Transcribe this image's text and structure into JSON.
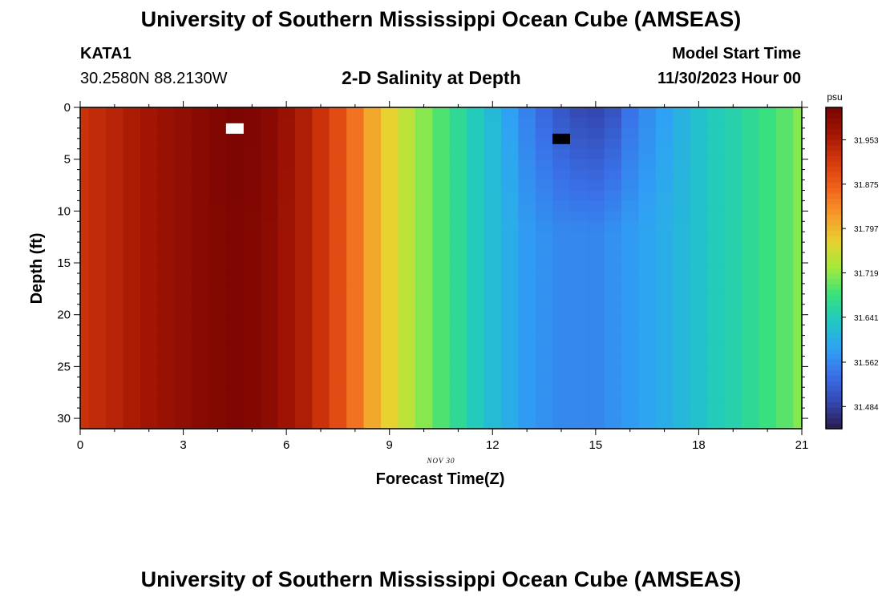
{
  "header": {
    "title": "University of Southern Mississippi Ocean Cube (AMSEAS)",
    "station": "KATA1",
    "coordinates": "30.2580N  88.2130W",
    "subtitle": "2-D Salinity at Depth",
    "model_start_label": "Model Start Time",
    "model_start_value": "11/30/2023 Hour 00"
  },
  "footer": {
    "title": "University of Southern Mississippi Ocean Cube (AMSEAS)"
  },
  "chart_data": {
    "type": "heatmap",
    "title": "2-D Salinity at Depth",
    "xlabel": "Forecast Time(Z)",
    "ylabel": "Depth (ft)",
    "date_label": "NOV 30",
    "x_ticks": [
      0,
      3,
      6,
      9,
      12,
      15,
      18,
      21
    ],
    "y_ticks": [
      0,
      5,
      10,
      15,
      20,
      25,
      30
    ],
    "xlim": [
      0,
      21
    ],
    "ylim": [
      31,
      0
    ],
    "time_hours": [
      0,
      0.5,
      1,
      1.5,
      2,
      2.5,
      3,
      3.5,
      4,
      4.5,
      5,
      5.5,
      6,
      6.5,
      7,
      7.5,
      8,
      8.5,
      9,
      9.5,
      10,
      10.5,
      11,
      11.5,
      12,
      12.5,
      13,
      13.5,
      14,
      14.5,
      15,
      15.5,
      16,
      16.5,
      17,
      17.5,
      18,
      18.5,
      19,
      19.5,
      20,
      20.5,
      21
    ],
    "surface_salinity_psu": [
      31.925,
      31.935,
      31.944,
      31.955,
      31.965,
      31.976,
      31.985,
      31.994,
      32.003,
      32.008,
      32.005,
      31.995,
      31.975,
      31.953,
      31.925,
      31.895,
      31.855,
      31.81,
      31.775,
      31.745,
      31.715,
      31.69,
      31.665,
      31.64,
      31.615,
      31.585,
      31.555,
      31.53,
      31.51,
      31.495,
      31.49,
      31.505,
      31.54,
      31.565,
      31.585,
      31.605,
      31.625,
      31.64,
      31.65,
      31.665,
      31.68,
      31.695,
      31.715
    ],
    "deep_salinity_psu": [
      31.925,
      31.935,
      31.944,
      31.955,
      31.965,
      31.976,
      31.985,
      31.994,
      32.0,
      32.004,
      32.0,
      31.99,
      31.97,
      31.953,
      31.925,
      31.895,
      31.855,
      31.81,
      31.775,
      31.745,
      31.715,
      31.69,
      31.665,
      31.64,
      31.618,
      31.6,
      31.58,
      31.57,
      31.562,
      31.562,
      31.56,
      31.57,
      31.58,
      31.59,
      31.6,
      31.612,
      31.625,
      31.64,
      31.65,
      31.665,
      31.68,
      31.695,
      31.715
    ],
    "deep_transition_depth_ft": 12,
    "markers": [
      {
        "type": "maximum",
        "color": "#ffffff",
        "time_hours": 4.5,
        "depth_ft": 2
      },
      {
        "type": "minimum",
        "color": "#000000",
        "time_hours": 14,
        "depth_ft": 3
      }
    ],
    "colorbar": {
      "unit": "psu",
      "min": 31.445,
      "max": 32.01,
      "ticks": [
        31.484,
        31.562,
        31.641,
        31.719,
        31.797,
        31.875,
        31.953
      ],
      "tick_labels": [
        "31.484",
        "31.562",
        "31.641",
        "31.719",
        "31.797",
        "31.875",
        "31.953"
      ],
      "colors": [
        "#2a1a4c",
        "#3447b0",
        "#3a70e8",
        "#2fa2f4",
        "#1fc8c4",
        "#38e07e",
        "#a2ea3c",
        "#e8d230",
        "#f59a2a",
        "#f0621c",
        "#d33a0c",
        "#a41604",
        "#7a0402"
      ]
    }
  }
}
